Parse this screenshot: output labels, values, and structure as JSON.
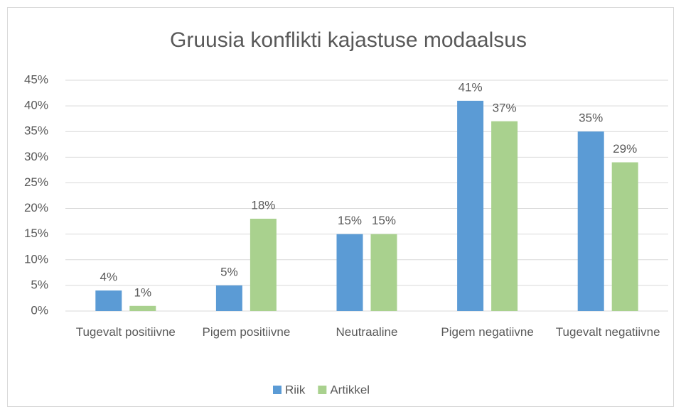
{
  "chart_data": {
    "type": "bar",
    "title": "Gruusia konflikti kajastuse modaalsus",
    "categories": [
      "Tugevalt positiivne",
      "Pigem positiivne",
      "Neutraaline",
      "Pigem negatiivne",
      "Tugevalt negatiivne"
    ],
    "series": [
      {
        "name": "Riik",
        "color": "#5b9bd5",
        "values": [
          4,
          5,
          15,
          41,
          35
        ],
        "value_labels": [
          "4%",
          "5%",
          "15%",
          "41%",
          "35%"
        ]
      },
      {
        "name": "Artikkel",
        "color": "#a9d18e",
        "values": [
          1,
          18,
          15,
          37,
          29
        ],
        "value_labels": [
          "1%",
          "18%",
          "15%",
          "37%",
          "29%"
        ]
      }
    ],
    "ylim": [
      0,
      45
    ],
    "yticks": [
      {
        "value": 0,
        "label": "0%"
      },
      {
        "value": 5,
        "label": "5%"
      },
      {
        "value": 10,
        "label": "10%"
      },
      {
        "value": 15,
        "label": "15%"
      },
      {
        "value": 20,
        "label": "20%"
      },
      {
        "value": 25,
        "label": "25%"
      },
      {
        "value": 30,
        "label": "30%"
      },
      {
        "value": 35,
        "label": "35%"
      },
      {
        "value": 40,
        "label": "40%"
      },
      {
        "value": 45,
        "label": "45%"
      }
    ],
    "grid": true,
    "legend": "bottom"
  }
}
